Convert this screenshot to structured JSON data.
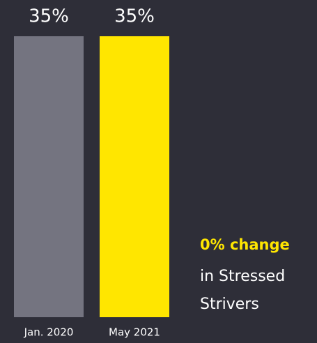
{
  "chart_data": {
    "type": "bar",
    "categories": [
      "Jan. 2020",
      "May 2021"
    ],
    "values": [
      35,
      35
    ],
    "value_labels": [
      "35%",
      "35%"
    ],
    "colors": [
      "#747480",
      "#ffe600"
    ],
    "annotation": {
      "highlight": "0% change",
      "lines": [
        "in Stressed",
        "Strivers"
      ]
    }
  }
}
